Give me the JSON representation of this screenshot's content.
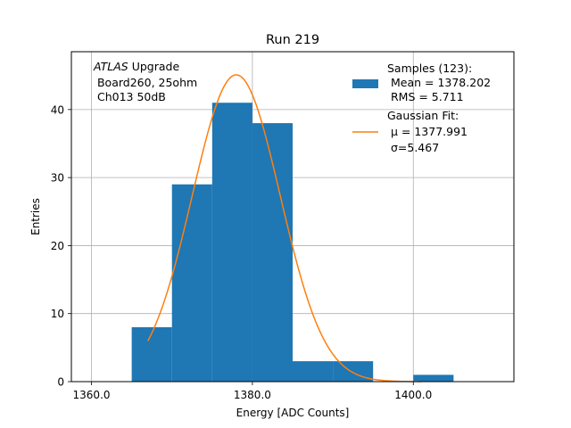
{
  "chart_data": {
    "type": "bar",
    "title": "Run 219",
    "xlabel": "Energy [ADC Counts]",
    "ylabel": "Entries",
    "xlim": [
      1357.5,
      1412.5
    ],
    "ylim": [
      0,
      48.5
    ],
    "grid": true,
    "x_ticks": [
      1360,
      1380,
      1400
    ],
    "x_tick_labels": [
      "1360.0",
      "1380.0",
      "1400.0"
    ],
    "y_ticks": [
      0,
      10,
      20,
      30,
      40
    ],
    "y_tick_labels": [
      "0",
      "10",
      "20",
      "30",
      "40"
    ],
    "histogram": {
      "name": "Samples (123):",
      "color": "#1f77b4",
      "bin_edges": [
        1365,
        1370,
        1375,
        1380,
        1385,
        1390,
        1395,
        1400,
        1405
      ],
      "counts": [
        8,
        29,
        41,
        38,
        3,
        3,
        0,
        1
      ]
    },
    "fit": {
      "name": "Gaussian Fit:",
      "color": "#ff7f0e",
      "mu": 1377.991,
      "sigma": 5.467,
      "amplitude": 45.1,
      "x_range": [
        1367,
        1401
      ]
    },
    "annotation": {
      "italic": "ATLAS",
      "rest": " Upgrade",
      "line2": " Board260, 25ohm",
      "line3": " Ch013 50dB"
    },
    "legend": {
      "location": "upper right",
      "hist_label": "Samples (123):",
      "hist_line2": " Mean = 1378.202",
      "hist_line3": " RMS = 5.711",
      "fit_label": "Gaussian Fit:",
      "fit_line2": " μ = 1377.991",
      "fit_line3": " σ=5.467"
    }
  }
}
